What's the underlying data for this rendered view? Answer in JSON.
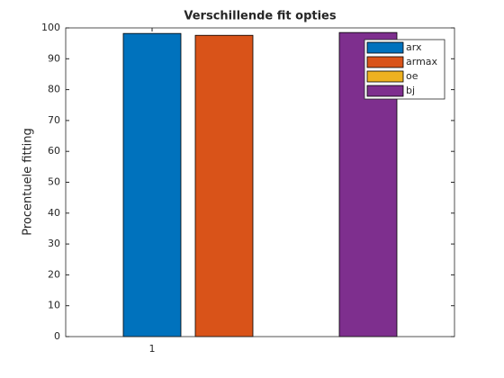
{
  "chart_data": {
    "type": "bar",
    "title": "Verschillende fit opties",
    "ylabel": "Procentuele fitting",
    "categories": [
      "1"
    ],
    "series": [
      {
        "name": "arx",
        "color": "#0072bd",
        "values": [
          98.2
        ]
      },
      {
        "name": "armax",
        "color": "#d95319",
        "values": [
          97.6
        ]
      },
      {
        "name": "oe",
        "color": "#edb120",
        "values": [
          0
        ]
      },
      {
        "name": "bj",
        "color": "#7e2f8e",
        "values": [
          98.5
        ]
      }
    ],
    "ylim": [
      0,
      100
    ],
    "yticks": [
      0,
      10,
      20,
      30,
      40,
      50,
      60,
      70,
      80,
      90,
      100
    ],
    "legend": "northeast",
    "grid": false
  }
}
